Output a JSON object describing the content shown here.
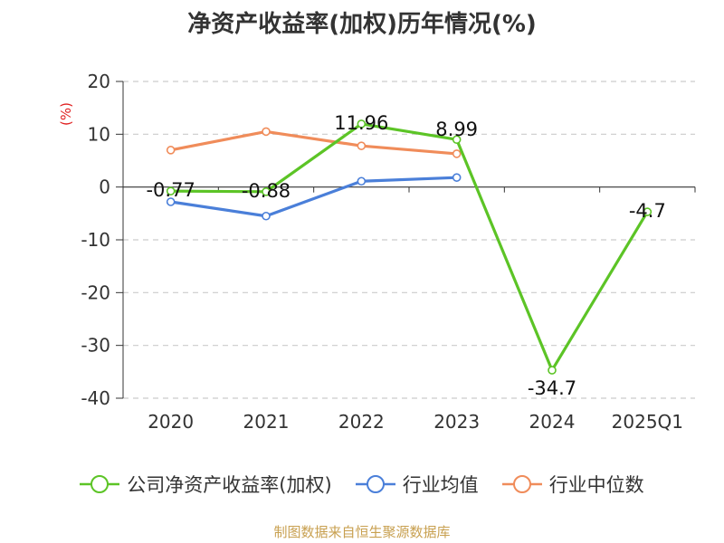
{
  "chart_data": {
    "type": "line",
    "title": "净资产收益率(加权)历年情况(%)",
    "ylabel": "(%)",
    "xlabel": "",
    "categories": [
      "2020",
      "2021",
      "2022",
      "2023",
      "2024",
      "2025Q1"
    ],
    "ylim": [
      -40,
      20
    ],
    "yticks": [
      20,
      10,
      0,
      -10,
      -20,
      -30,
      -40
    ],
    "grid": true,
    "legend_position": "bottom",
    "series": [
      {
        "name": "公司净资产收益率(加权)",
        "color": "#5cc426",
        "values": [
          -0.77,
          -0.88,
          11.96,
          8.99,
          -34.7,
          -4.7
        ],
        "labels": [
          "-0.77",
          "-0.88",
          "11.96",
          "8.99",
          "-34.7",
          "-4.7"
        ]
      },
      {
        "name": "行业均值",
        "color": "#4a7fd9",
        "values": [
          -2.8,
          -5.5,
          1.1,
          1.8,
          null,
          null
        ]
      },
      {
        "name": "行业中位数",
        "color": "#f08c5a",
        "values": [
          7.0,
          10.5,
          7.8,
          6.3,
          null,
          null
        ]
      }
    ]
  },
  "footer": {
    "source": "制图数据来自恒生聚源数据库"
  }
}
